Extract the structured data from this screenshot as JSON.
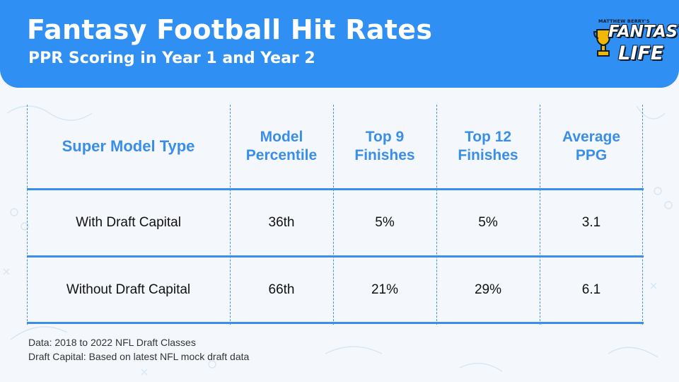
{
  "header": {
    "title": "Fantasy Football Hit Rates",
    "subtitle": "PPR Scoring in Year 1 and Year 2"
  },
  "logo": {
    "top_line": "MATTHEW BERRY'S",
    "word1": "FANTASY",
    "word2": "LIFE",
    "icon": "trophy-icon"
  },
  "colors": {
    "accent": "#2f8ff2",
    "header_text": "#ffffff",
    "column_header": "#3a8ee8"
  },
  "chart_data": {
    "type": "table",
    "columns": [
      "Super Model Type",
      "Model Percentile",
      "Top 9 Finishes",
      "Top 12 Finishes",
      "Average PPG"
    ],
    "rows": [
      [
        "With Draft Capital",
        "36th",
        "5%",
        "5%",
        "3.1"
      ],
      [
        "Without Draft Capital",
        "66th",
        "21%",
        "29%",
        "6.1"
      ]
    ]
  },
  "footnotes": [
    "Data: 2018 to 2022 NFL Draft Classes",
    "Draft Capital: Based on latest NFL mock draft data"
  ]
}
